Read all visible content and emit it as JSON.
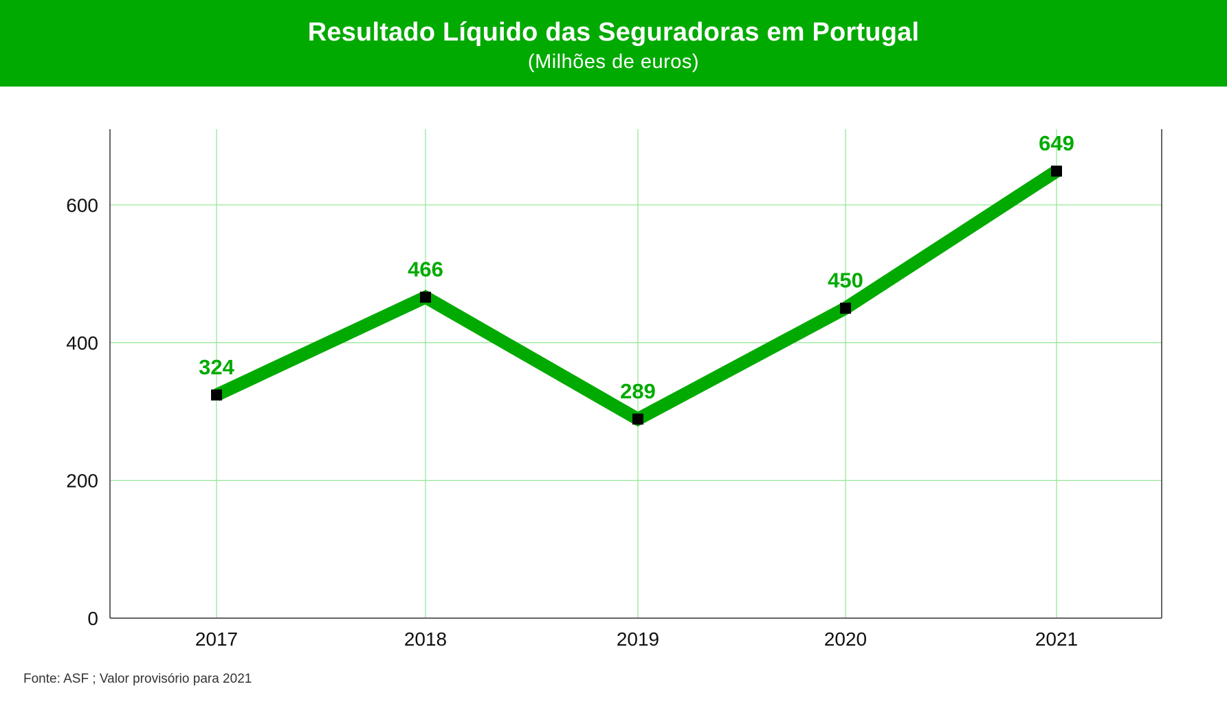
{
  "header": {
    "title": "Resultado Líquido das Seguradoras em Portugal",
    "subtitle": "(Milhões de euros)"
  },
  "chart_data": {
    "type": "line",
    "title": "Resultado Líquido das Seguradoras em Portugal",
    "subtitle": "(Milhões de euros)",
    "categories": [
      "2017",
      "2018",
      "2019",
      "2020",
      "2021"
    ],
    "series": [
      {
        "name": "Resultado Líquido",
        "values": [
          324,
          466,
          289,
          450,
          649
        ],
        "labels": [
          "324",
          "466",
          "289",
          "450",
          "649"
        ]
      }
    ],
    "ylim": [
      0,
      710
    ],
    "yticks": [
      0,
      200,
      400,
      600
    ],
    "ytick_labels": [
      "0",
      "200",
      "400",
      "600"
    ],
    "xlabel": "",
    "ylabel": "",
    "grid": true,
    "colors": {
      "line": "#00aa00",
      "marker": "#000000",
      "label": "#00aa00",
      "grid": "#8ee68e",
      "axis": "#333333"
    }
  },
  "footer": {
    "source": "Fonte: ASF ; Valor provisório para 2021"
  }
}
